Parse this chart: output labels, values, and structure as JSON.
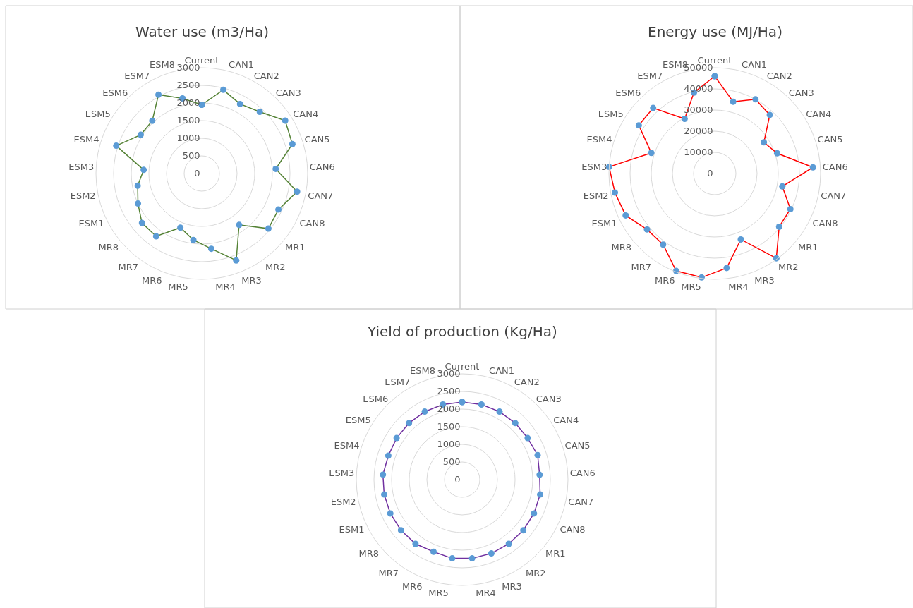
{
  "chart_data": [
    {
      "type": "radar",
      "title": "Water use (m3/Ha)",
      "categories": [
        "Current",
        "CAN1",
        "CAN2",
        "CAN3",
        "CAN4",
        "CAN5",
        "CAN6",
        "CAN7",
        "CAN8",
        "MR1",
        "MR2",
        "MR3",
        "MR4",
        "MR5",
        "MR6",
        "MR7",
        "MR8",
        "ESM1",
        "ESM2",
        "ESM3",
        "ESM4",
        "ESM5",
        "ESM6",
        "ESM7",
        "ESM8"
      ],
      "ylim": [
        0,
        3000
      ],
      "yticks": [
        0,
        500,
        1000,
        1500,
        2000,
        2500,
        3000
      ],
      "grid": true,
      "marker": "circle",
      "series": [
        {
          "color": "#548235",
          "values": [
            1950,
            2450,
            2250,
            2400,
            2800,
            2700,
            2100,
            2750,
            2400,
            2450,
            1800,
            2650,
            2150,
            1900,
            1650,
            2200,
            2200,
            2000,
            1850,
            1650,
            2550,
            2050,
            2050,
            2550,
            2200
          ]
        }
      ]
    },
    {
      "type": "radar",
      "title": "Energy use (MJ/Ha)",
      "categories": [
        "Current",
        "CAN1",
        "CAN2",
        "CAN3",
        "CAN4",
        "CAN5",
        "CAN6",
        "CAN7",
        "CAN8",
        "MR1",
        "MR2",
        "MR3",
        "MR4",
        "MR5",
        "MR6",
        "MR7",
        "MR8",
        "ESM1",
        "ESM2",
        "ESM3",
        "ESM4",
        "ESM5",
        "ESM6",
        "ESM7",
        "ESM8"
      ],
      "ylim": [
        0,
        50000
      ],
      "yticks": [
        0,
        10000,
        20000,
        30000,
        40000,
        50000
      ],
      "grid": true,
      "marker": "circle",
      "series": [
        {
          "color": "#ff0000",
          "values": [
            46000,
            35000,
            40000,
            38000,
            27500,
            31000,
            46500,
            32500,
            39500,
            39500,
            49500,
            33500,
            45000,
            49500,
            49500,
            41500,
            41500,
            46500,
            48000,
            50000,
            31500,
            42500,
            42500,
            29500,
            39500
          ]
        }
      ]
    },
    {
      "type": "radar",
      "title": "Yield of production (Kg/Ha)",
      "categories": [
        "Current",
        "CAN1",
        "CAN2",
        "CAN3",
        "CAN4",
        "CAN5",
        "CAN6",
        "CAN7",
        "CAN8",
        "MR1",
        "MR2",
        "MR3",
        "MR4",
        "MR5",
        "MR6",
        "MR7",
        "MR8",
        "ESM1",
        "ESM2",
        "ESM3",
        "ESM4",
        "ESM5",
        "ESM6",
        "ESM7",
        "ESM8"
      ],
      "ylim": [
        0,
        3000
      ],
      "yticks": [
        0,
        500,
        1000,
        1500,
        2000,
        2500,
        3000
      ],
      "grid": true,
      "marker": "circle",
      "series": [
        {
          "color": "#7030a0",
          "values": [
            2200,
            2200,
            2200,
            2200,
            2200,
            2250,
            2200,
            2250,
            2250,
            2250,
            2250,
            2250,
            2250,
            2250,
            2200,
            2250,
            2250,
            2250,
            2250,
            2250,
            2200,
            2200,
            2200,
            2200,
            2200
          ]
        }
      ]
    }
  ]
}
